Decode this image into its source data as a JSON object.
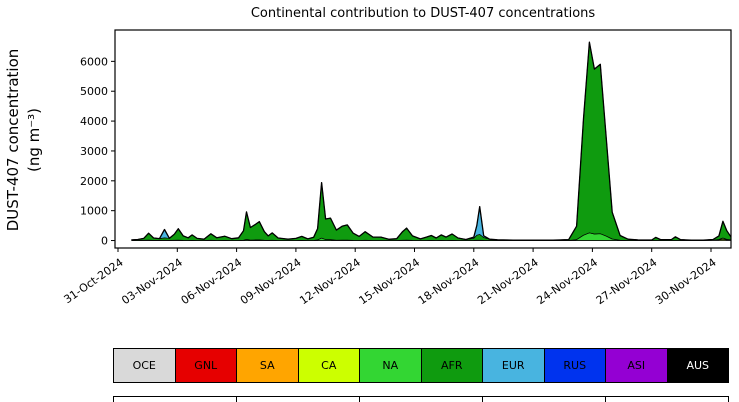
{
  "title": "Continental contribution to DUST-407 concentrations",
  "y_axis": {
    "label_line1": "DUST-407 concentration",
    "label_line2": "(ng m⁻³)",
    "ticks": [
      0,
      1000,
      2000,
      3000,
      4000,
      5000,
      6000
    ]
  },
  "x_axis": {
    "tick_days": [
      0,
      3,
      6,
      9,
      12,
      15,
      18,
      21,
      24,
      27,
      30
    ],
    "tick_labels": [
      "31-Oct-2024",
      "03-Nov-2024",
      "06-Nov-2024",
      "09-Nov-2024",
      "12-Nov-2024",
      "15-Nov-2024",
      "18-Nov-2024",
      "21-Nov-2024",
      "24-Nov-2024",
      "27-Nov-2024",
      "30-Nov-2024"
    ]
  },
  "legend": {
    "entries": [
      {
        "label": "OCE",
        "color": "#d9d9d9",
        "text_color": "#000000"
      },
      {
        "label": "GNL",
        "color": "#e60000",
        "text_color": "#000000"
      },
      {
        "label": "SA",
        "color": "#ffa500",
        "text_color": "#000000"
      },
      {
        "label": "CA",
        "color": "#ccff00",
        "text_color": "#000000"
      },
      {
        "label": "NA",
        "color": "#33d633",
        "text_color": "#000000"
      },
      {
        "label": "AFR",
        "color": "#0f9b0f",
        "text_color": "#000000"
      },
      {
        "label": "EUR",
        "color": "#48b4e0",
        "text_color": "#000000"
      },
      {
        "label": "RUS",
        "color": "#0033ee",
        "text_color": "#000000"
      },
      {
        "label": "ASI",
        "color": "#9400d3",
        "text_color": "#000000"
      },
      {
        "label": "AUS",
        "color": "#000000",
        "text_color": "#ffffff"
      }
    ]
  },
  "chart_data": {
    "type": "area",
    "stacked": true,
    "title": "Continental contribution to DUST-407 concentrations",
    "ylabel": "DUST-407 concentration (ng m⁻³)",
    "x_unit": "days since 31-Oct-2024",
    "xlim": [
      -0.152,
      31.012
    ],
    "ylim": [
      -250,
      7050
    ],
    "outline_color": "#000000",
    "x": [
      0.7,
      1.0,
      1.3,
      1.55,
      1.8,
      2.1,
      2.35,
      2.6,
      2.85,
      3.05,
      3.3,
      3.55,
      3.75,
      4.0,
      4.35,
      4.7,
      5.0,
      5.4,
      5.75,
      6.1,
      6.35,
      6.5,
      6.7,
      6.95,
      7.15,
      7.4,
      7.6,
      7.8,
      8.1,
      8.6,
      9.0,
      9.3,
      9.6,
      9.9,
      10.1,
      10.3,
      10.5,
      10.75,
      11.05,
      11.35,
      11.6,
      11.9,
      12.2,
      12.5,
      12.9,
      13.3,
      13.7,
      14.1,
      14.4,
      14.6,
      14.9,
      15.3,
      15.6,
      15.85,
      16.1,
      16.35,
      16.6,
      16.9,
      17.2,
      17.6,
      18.0,
      18.15,
      18.3,
      18.5,
      18.8,
      19.2,
      20.0,
      21.0,
      22.0,
      22.8,
      23.2,
      23.55,
      23.85,
      24.1,
      24.4,
      24.7,
      25.0,
      25.4,
      25.8,
      26.3,
      27.0,
      27.2,
      27.45,
      28.0,
      28.2,
      28.45,
      29.0,
      29.6,
      30.1,
      30.4,
      30.6,
      30.8,
      31.0
    ],
    "series": [
      {
        "name": "CA",
        "color": "#ccff00",
        "values": [
          0,
          0,
          0,
          0,
          0,
          0,
          0,
          0,
          0,
          0,
          0,
          0,
          0,
          0,
          0,
          0,
          0,
          0,
          0,
          0,
          0,
          0,
          0,
          0,
          0,
          0,
          0,
          0,
          0,
          0,
          0,
          0,
          0,
          0,
          0,
          0,
          0,
          0,
          0,
          0,
          0,
          0,
          0,
          0,
          0,
          0,
          0,
          0,
          0,
          0,
          0,
          0,
          0,
          0,
          0,
          0,
          0,
          0,
          0,
          0,
          0,
          0,
          0,
          0,
          0,
          0,
          0,
          0,
          0,
          0,
          0,
          0,
          0,
          0,
          0,
          0,
          0,
          0,
          0,
          0,
          0,
          0,
          0,
          0,
          0,
          0,
          0,
          0,
          10,
          25,
          45,
          20,
          10
        ]
      },
      {
        "name": "NA",
        "color": "#33d633",
        "values": [
          0,
          0,
          10,
          15,
          5,
          5,
          10,
          5,
          10,
          15,
          5,
          0,
          5,
          0,
          0,
          10,
          0,
          5,
          0,
          0,
          10,
          40,
          15,
          20,
          25,
          10,
          5,
          10,
          0,
          0,
          0,
          5,
          0,
          0,
          20,
          80,
          30,
          30,
          10,
          15,
          15,
          5,
          0,
          10,
          0,
          0,
          0,
          0,
          10,
          15,
          5,
          0,
          0,
          5,
          0,
          5,
          0,
          5,
          0,
          0,
          5,
          10,
          10,
          5,
          0,
          0,
          0,
          0,
          0,
          0,
          30,
          180,
          260,
          220,
          230,
          150,
          50,
          10,
          0,
          0,
          0,
          0,
          0,
          0,
          0,
          0,
          0,
          0,
          0,
          10,
          40,
          20,
          10
        ]
      },
      {
        "name": "AFR",
        "color": "#0f9b0f",
        "values": [
          20,
          35,
          60,
          230,
          80,
          60,
          80,
          70,
          200,
          380,
          150,
          90,
          185,
          70,
          45,
          215,
          90,
          140,
          60,
          90,
          320,
          920,
          420,
          520,
          610,
          290,
          150,
          245,
          85,
          45,
          70,
          135,
          55,
          110,
          380,
          1860,
          690,
          720,
          340,
          470,
          510,
          240,
          140,
          285,
          115,
          115,
          40,
          60,
          290,
          400,
          150,
          55,
          115,
          165,
          85,
          185,
          115,
          215,
          85,
          35,
          70,
          170,
          195,
          95,
          45,
          25,
          15,
          15,
          15,
          30,
          450,
          3900,
          6380,
          5520,
          5670,
          3300,
          900,
          160,
          45,
          20,
          18,
          105,
          30,
          35,
          125,
          30,
          15,
          15,
          25,
          120,
          560,
          290,
          110
        ]
      },
      {
        "name": "EUR",
        "color": "#48b4e0",
        "values": [
          0,
          0,
          0,
          0,
          0,
          0,
          280,
          0,
          0,
          0,
          0,
          0,
          0,
          0,
          0,
          0,
          0,
          0,
          0,
          0,
          0,
          0,
          0,
          0,
          0,
          0,
          0,
          0,
          0,
          0,
          0,
          0,
          0,
          0,
          0,
          0,
          0,
          0,
          0,
          0,
          0,
          0,
          0,
          0,
          0,
          0,
          0,
          0,
          0,
          0,
          0,
          0,
          0,
          0,
          0,
          0,
          0,
          0,
          0,
          0,
          40,
          320,
          930,
          60,
          0,
          0,
          0,
          0,
          0,
          0,
          0,
          0,
          0,
          0,
          0,
          0,
          0,
          0,
          0,
          0,
          0,
          0,
          0,
          0,
          0,
          0,
          0,
          0,
          0,
          0,
          0,
          0,
          0
        ]
      }
    ],
    "zero_series": [
      "OCE",
      "GNL",
      "SA",
      "RUS",
      "ASI",
      "AUS"
    ]
  }
}
